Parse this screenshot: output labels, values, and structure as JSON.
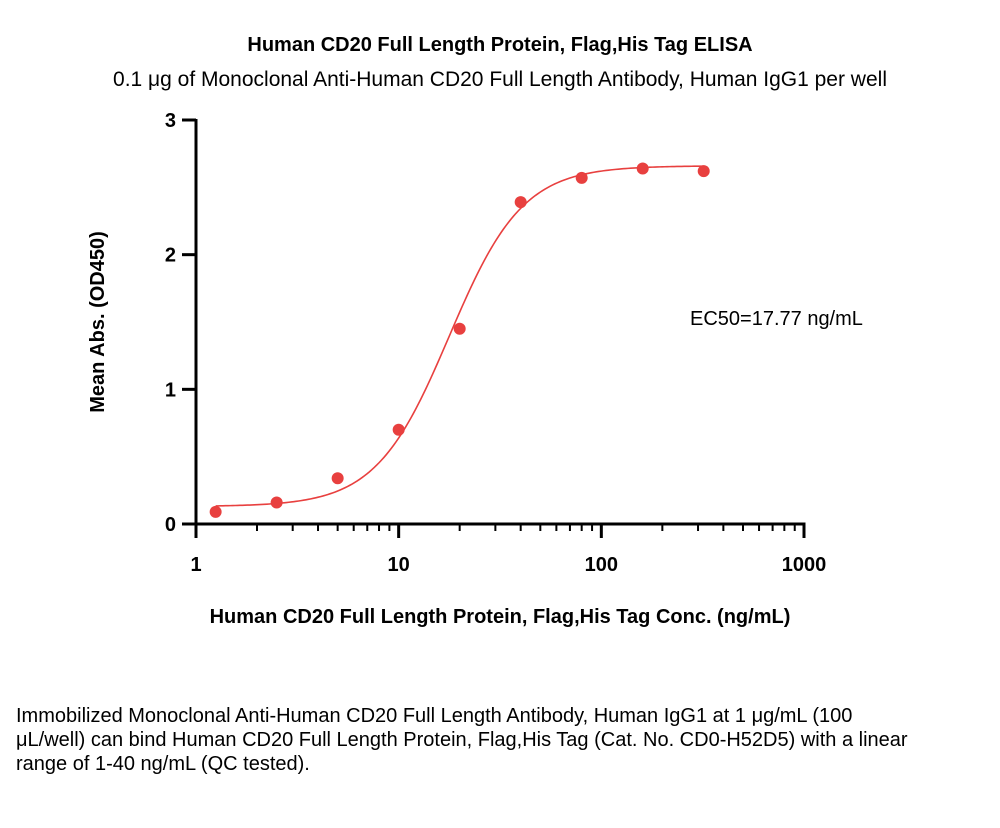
{
  "chart_data": {
    "type": "scatter",
    "title": "Human CD20 Full Length Protein, Flag,His Tag ELISA",
    "subtitle": "0.1 μg of Monoclonal Anti-Human CD20 Full Length Antibody, Human IgG1 per well",
    "xlabel": "Human CD20 Full Length Protein, Flag,His Tag Conc. (ng/mL)",
    "ylabel": "Mean Abs. (OD450)",
    "x_scale": "log",
    "xlim": [
      1,
      1000
    ],
    "ylim": [
      0,
      3
    ],
    "x_ticks": [
      "1",
      "10",
      "100",
      "1000"
    ],
    "y_ticks": [
      "0",
      "1",
      "2",
      "3"
    ],
    "grid": false,
    "color": "#e8403f",
    "points": {
      "x": [
        1.25,
        2.5,
        5,
        10,
        20,
        40,
        80,
        160,
        320
      ],
      "y": [
        0.09,
        0.16,
        0.34,
        0.7,
        1.45,
        2.39,
        2.57,
        2.64,
        2.62
      ]
    },
    "fit": {
      "bottom": 0.13,
      "top": 2.66,
      "ec50": 17.77,
      "hill": 2.4,
      "x_range": [
        1.25,
        320
      ]
    },
    "annotation": "EC50=17.77 ng/mL"
  },
  "caption": "Immobilized Monoclonal Anti-Human CD20 Full Length Antibody, Human IgG1 at 1 μg/mL (100 μL/well) can bind Human CD20 Full Length Protein, Flag,His Tag (Cat. No. CD0-H52D5) with a linear range of 1-40 ng/mL (QC tested)."
}
